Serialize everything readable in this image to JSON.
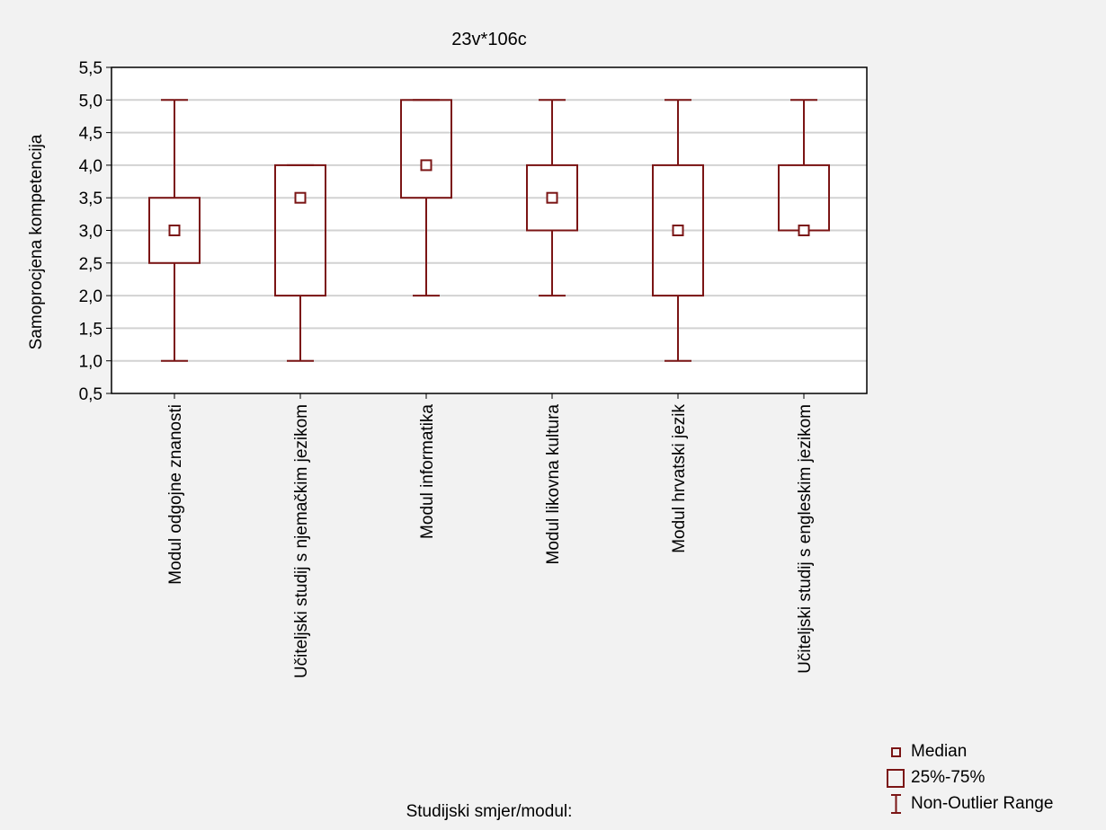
{
  "colors": {
    "box": "#7b1515",
    "grid": "#d2d2d2",
    "background": "#f2f2f2",
    "plot_background": "#ffffff"
  },
  "chart_data": {
    "type": "box",
    "title": "23v*106c",
    "xlabel": "Studijski smjer/modul:",
    "ylabel": "Samoprocjena kompetencija",
    "ylim": [
      0.5,
      5.5
    ],
    "yticks": [
      "0,5",
      "1,0",
      "1,5",
      "2,0",
      "2,5",
      "3,0",
      "3,5",
      "4,0",
      "4,5",
      "5,0",
      "5,5"
    ],
    "ytick_values": [
      0.5,
      1.0,
      1.5,
      2.0,
      2.5,
      3.0,
      3.5,
      4.0,
      4.5,
      5.0,
      5.5
    ],
    "grid": true,
    "categories": [
      "Modul odgojne znanosti",
      "Učiteljski studij s njemačkim jezikom",
      "Modul informatika",
      "Modul likovna kultura",
      "Modul hrvatski jezik",
      "Učiteljski studij s engleskim jezikom"
    ],
    "boxes": [
      {
        "median": 3.0,
        "q1": 2.5,
        "q3": 3.5,
        "min": 1.0,
        "max": 5.0
      },
      {
        "median": 3.5,
        "q1": 2.0,
        "q3": 4.0,
        "min": 1.0,
        "max": 4.0
      },
      {
        "median": 4.0,
        "q1": 3.5,
        "q3": 5.0,
        "min": 2.0,
        "max": 5.0
      },
      {
        "median": 3.5,
        "q1": 3.0,
        "q3": 4.0,
        "min": 2.0,
        "max": 5.0
      },
      {
        "median": 3.0,
        "q1": 2.0,
        "q3": 4.0,
        "min": 1.0,
        "max": 5.0
      },
      {
        "median": 3.0,
        "q1": 3.0,
        "q3": 4.0,
        "min": 3.0,
        "max": 5.0
      }
    ],
    "legend": {
      "position": "bottom-right",
      "entries": [
        "Median",
        "25%-75%",
        "Non-Outlier Range"
      ]
    }
  }
}
